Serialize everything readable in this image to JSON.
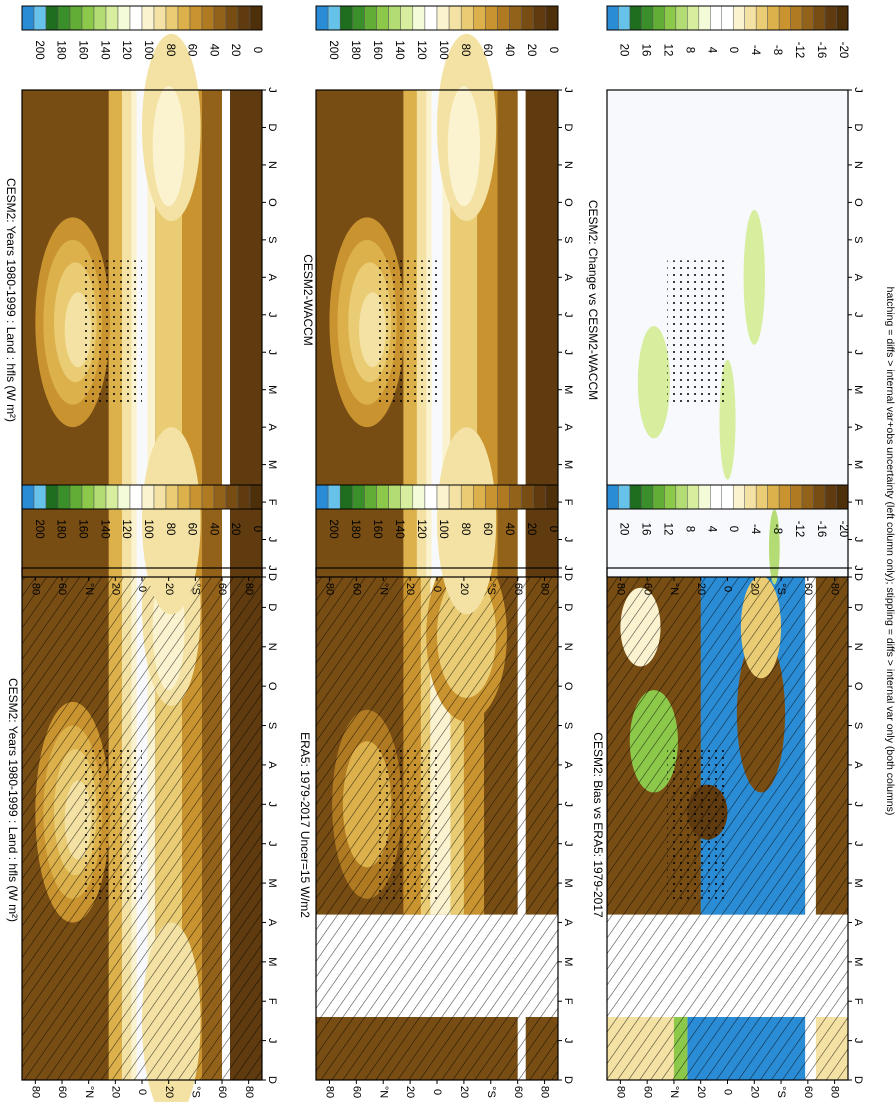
{
  "footnote": "hatching = diffs > internal var+obs uncertainty (left column only); stippling = diffs > internal var only (both columns)",
  "months": [
    "D",
    "J",
    "F",
    "M",
    "A",
    "M",
    "J",
    "J",
    "A",
    "S",
    "O",
    "N",
    "D",
    "J"
  ],
  "lat_ticks": [
    "80",
    "60",
    "°N",
    "20",
    "0",
    "20",
    "°S",
    "60",
    "80"
  ],
  "colorbars": {
    "abs": {
      "labels": [
        "200",
        "180",
        "160",
        "140",
        "120",
        "100",
        "80",
        "60",
        "40",
        "20",
        "0"
      ],
      "colors": [
        "#2b8cd6",
        "#66c2e8",
        "#1f6e1f",
        "#3a8f2a",
        "#62ad35",
        "#8cc94a",
        "#b4dc74",
        "#d6ee9e",
        "#f4fbd8",
        "#ffffff",
        "#fbf3cf",
        "#f3e2a3",
        "#e9cc73",
        "#dcb14c",
        "#c99430",
        "#b07a22",
        "#93621a",
        "#774d14",
        "#5f3b0f",
        "#4d2f0a"
      ]
    },
    "diff": {
      "labels": [
        "20",
        "16",
        "12",
        "8",
        "4",
        "0",
        "-4",
        "-8",
        "-12",
        "-16",
        "-20"
      ],
      "colors": [
        "#2b8cd6",
        "#66c2e8",
        "#1f6e1f",
        "#3a8f2a",
        "#62ad35",
        "#8cc94a",
        "#b4dc74",
        "#d6ee9e",
        "#f4fbd8",
        "#ffffff",
        "#ffffff",
        "#fbf3cf",
        "#f3e2a3",
        "#e9cc73",
        "#dcb14c",
        "#c99430",
        "#b07a22",
        "#93621a",
        "#774d14",
        "#5f3b0f",
        "#4d2f0a"
      ]
    }
  },
  "chart_data": [
    {
      "type": "heatmap",
      "panel": "left-top",
      "title": "CESM2: Years 1980-1999 : Land : hfls (W m²)",
      "x": "month",
      "y": "latitude",
      "colorbar": "abs"
    },
    {
      "type": "heatmap",
      "panel": "left-middle",
      "title": "ERA5: 1979-2017 Uncer=15 W/m2",
      "x": "month",
      "y": "latitude",
      "colorbar": "abs"
    },
    {
      "type": "heatmap",
      "panel": "left-bottom",
      "title": "CESM2: Bias vs ERA5: 1979-2017",
      "x": "month",
      "y": "latitude",
      "colorbar": "diff"
    },
    {
      "type": "heatmap",
      "panel": "right-top",
      "title": "CESM2: Years 1980-1999 : Land : hfls (W m²)",
      "x": "month",
      "y": "latitude",
      "colorbar": "abs"
    },
    {
      "type": "heatmap",
      "panel": "right-middle",
      "title": "CESM2-WACCM",
      "x": "month",
      "y": "latitude",
      "colorbar": "abs"
    },
    {
      "type": "heatmap",
      "panel": "right-bottom",
      "title": "CESM2: Change vs CESM2-WACCM",
      "x": "month",
      "y": "latitude",
      "colorbar": "diff"
    }
  ]
}
